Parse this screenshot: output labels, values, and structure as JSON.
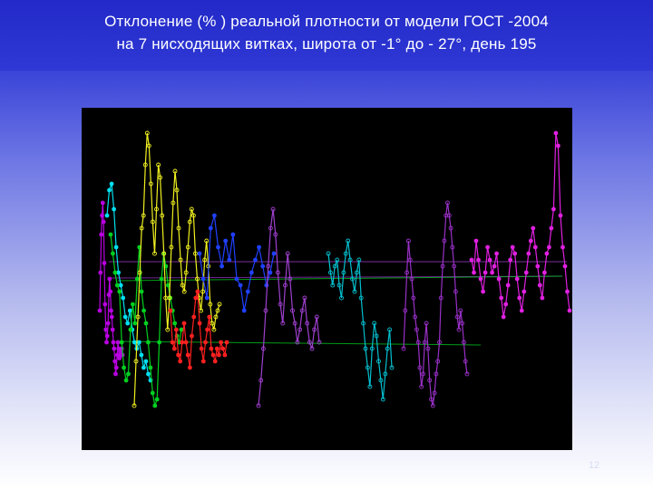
{
  "slide": {
    "title_line1": "Отклонение (% ) реальной плотности от модели ГОСТ -2004",
    "title_line2": "на 7 нисходящих витках, широта  от -1° до - 27°,  день 195",
    "slide_number": "12"
  },
  "colors": {
    "title_bar": "#2229c8",
    "plot_background": "#000000"
  },
  "chart_data": {
    "type": "line",
    "title": "Отклонение (% ) реальной плотности от модели ГОСТ -2004 на 7 нисходящих витках, широта  от -1° до - 27°,  день 195",
    "xlabel": "",
    "ylabel": "",
    "axes_shown": false,
    "grid": false,
    "legend": "none",
    "series": [
      {
        "color": "#b800e0",
        "marker": "dot",
        "values": [
          40,
          52,
          64,
          70,
          74,
          68,
          55,
          42,
          34,
          30,
          32,
          36,
          45,
          50,
          46,
          40,
          38,
          34,
          30,
          28,
          24,
          20,
          22,
          26,
          30,
          28,
          25,
          27,
          26,
          28,
          26
        ]
      },
      {
        "color": "#00e0f0",
        "marker": "dot",
        "values": [
          70,
          78,
          80,
          72,
          60,
          52,
          48,
          44,
          38,
          36,
          40,
          34,
          30,
          28,
          30,
          26,
          22,
          24,
          20,
          18
        ]
      },
      {
        "color": "#00d020",
        "marker": "dot",
        "values": [
          64,
          58,
          52,
          48,
          46,
          30,
          22,
          18,
          20,
          34,
          42,
          36,
          50,
          60,
          46,
          40,
          36,
          30,
          22,
          14,
          10,
          12,
          30,
          50,
          58,
          54,
          48,
          44,
          40,
          36,
          32,
          30,
          34
        ]
      },
      {
        "color": "#f0f020",
        "marker": "ring",
        "values": [
          10,
          24,
          38,
          52,
          66,
          70,
          86,
          96,
          92,
          80,
          68,
          58,
          72,
          86,
          82,
          70,
          58,
          44,
          34,
          44,
          60,
          74,
          84,
          78,
          66,
          56,
          48,
          46,
          52,
          60,
          68,
          72,
          70,
          58,
          50,
          44,
          40,
          46,
          56,
          62,
          54,
          42,
          36,
          34,
          38,
          40,
          42
        ]
      },
      {
        "color": "#ff2020",
        "marker": "dot",
        "values": [
          40,
          30,
          28,
          34,
          26,
          24,
          30,
          36,
          30,
          26,
          22,
          32,
          38,
          44,
          46,
          36,
          28,
          24,
          30,
          34,
          38,
          28,
          26,
          24,
          28,
          26,
          30,
          28,
          26,
          30
        ]
      },
      {
        "color": "#2040ff",
        "marker": "dot",
        "values": [
          58,
          50,
          44,
          66,
          70,
          60,
          54,
          62,
          56,
          64,
          50,
          48,
          40,
          46,
          52,
          56,
          60,
          54,
          48,
          52,
          58
        ]
      },
      {
        "color": "#a040d0",
        "marker": "ring",
        "values": [
          10,
          18,
          28,
          40,
          54,
          66,
          72,
          64,
          52,
          42,
          36,
          48,
          58,
          50,
          40,
          36,
          30,
          34,
          40,
          44,
          36,
          30,
          28,
          34,
          38,
          30
        ]
      },
      {
        "color": "#00c0d0",
        "marker": "ring",
        "values": [
          58,
          52,
          48,
          54,
          56,
          48,
          44,
          52,
          58,
          62,
          56,
          50,
          46,
          52,
          56,
          44,
          36,
          28,
          22,
          16,
          28,
          36,
          32,
          24,
          18,
          12,
          20,
          28,
          34,
          22
        ]
      },
      {
        "color": "#9a30c8",
        "marker": "ring",
        "values": [
          28,
          40,
          52,
          62,
          56,
          50,
          44,
          38,
          34,
          30,
          22,
          16,
          20,
          30,
          36,
          28,
          18,
          12,
          10,
          14,
          20,
          24,
          30,
          44,
          54,
          62,
          70,
          74,
          70,
          66,
          60,
          54,
          46,
          38,
          34,
          40,
          36,
          30,
          24,
          20
        ]
      },
      {
        "color": "#e020e0",
        "marker": "dot",
        "values": [
          56,
          52,
          62,
          56,
          50,
          46,
          52,
          60,
          56,
          52,
          54,
          58,
          50,
          44,
          38,
          42,
          48,
          56,
          60,
          58,
          50,
          44,
          40,
          46,
          52,
          58,
          62,
          66,
          60,
          54,
          48,
          44,
          52,
          58,
          60,
          66,
          72,
          96,
          92,
          70,
          60,
          54,
          46,
          40
        ]
      }
    ]
  }
}
